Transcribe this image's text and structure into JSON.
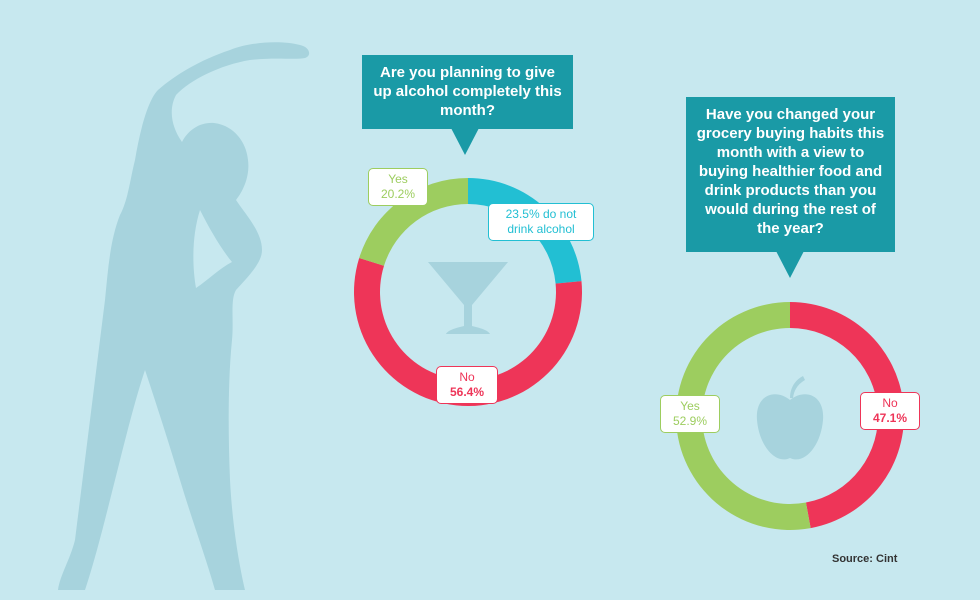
{
  "chart_data": [
    {
      "type": "donut",
      "title": "Are you planning to give up alcohol completely this month?",
      "categories": [
        null,
        "No",
        "Yes"
      ],
      "values": [
        23.5,
        56.4,
        20.2
      ],
      "value_labels": [
        "23.5% do not drink alcohol",
        "56.4%",
        "20.2%"
      ],
      "colors": [
        "#22bfd3",
        "#ee3558",
        "#9dcd5f"
      ]
    },
    {
      "type": "donut",
      "title": "Have you changed your grocery buying habits this month with a view to buying healthier food and drink products than you would during the rest of the year?",
      "categories": [
        "No",
        "Yes"
      ],
      "values": [
        47.1,
        52.9
      ],
      "value_labels": [
        "47.1%",
        "52.9%"
      ],
      "colors": [
        "#ee3558",
        "#9dcd5f"
      ]
    }
  ],
  "source": "Source: Cint"
}
